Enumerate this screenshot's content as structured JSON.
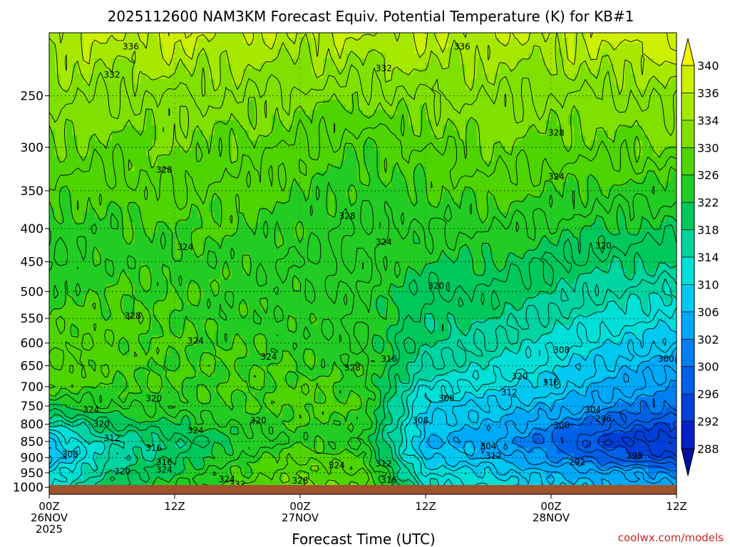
{
  "chart_data": {
    "type": "heatmap",
    "title": "2025112600 NAM3KM Forecast Equiv. Potential Temperature (K) for KB#1",
    "xlabel": "Forecast Time (UTC)",
    "ylabel": "",
    "y_axis": {
      "type": "pressure (log)",
      "range": [
        1025,
        200
      ],
      "ticks": [
        250,
        300,
        350,
        400,
        450,
        500,
        550,
        600,
        650,
        700,
        750,
        800,
        850,
        900,
        950,
        1000
      ]
    },
    "x_axis": {
      "range_hours": [
        0,
        60
      ],
      "ticks": [
        {
          "hour": 0,
          "line1": "00Z",
          "line2": "26NOV",
          "line3": "2025"
        },
        {
          "hour": 12,
          "line1": "12Z",
          "line2": "",
          "line3": ""
        },
        {
          "hour": 24,
          "line1": "00Z",
          "line2": "27NOV",
          "line3": ""
        },
        {
          "hour": 36,
          "line1": "12Z",
          "line2": "",
          "line3": ""
        },
        {
          "hour": 48,
          "line1": "00Z",
          "line2": "28NOV",
          "line3": ""
        },
        {
          "hour": 60,
          "line1": "12Z",
          "line2": "",
          "line3": ""
        }
      ]
    },
    "colorbar": {
      "levels": [
        340,
        336,
        334,
        330,
        326,
        322,
        318,
        314,
        310,
        306,
        302,
        300,
        296,
        292,
        288
      ],
      "colors": [
        "#f5f500",
        "#ccf000",
        "#a6e800",
        "#80e000",
        "#4ed400",
        "#22cc22",
        "#00c85a",
        "#00d4a0",
        "#00e0d8",
        "#00c8f0",
        "#00a8f8",
        "#0080f0",
        "#0060e8",
        "#0040d8",
        "#0020c8",
        "#0010a0"
      ]
    },
    "field": {
      "x_hours": [
        0,
        6,
        12,
        18,
        24,
        30,
        36,
        42,
        48,
        54,
        60
      ],
      "pressure_levels": [
        200,
        250,
        300,
        350,
        400,
        450,
        500,
        550,
        600,
        650,
        700,
        750,
        800,
        850,
        900,
        950,
        1000
      ],
      "theta_e": [
        [
          336,
          336,
          337,
          336,
          336,
          336,
          336,
          336,
          336,
          337,
          338
        ],
        [
          333,
          332,
          332,
          332,
          331,
          331,
          332,
          332,
          332,
          332,
          333
        ],
        [
          330,
          329,
          330,
          329,
          328,
          326,
          328,
          330,
          329,
          329,
          330
        ],
        [
          327,
          327,
          328,
          327,
          326,
          325,
          326,
          327,
          326,
          325,
          325
        ],
        [
          325,
          325,
          326,
          326,
          325,
          324,
          324,
          324,
          323,
          322,
          321
        ],
        [
          324,
          325,
          325,
          325,
          324,
          324,
          322,
          322,
          320,
          319,
          318
        ],
        [
          325,
          326,
          326,
          325,
          325,
          324,
          320,
          320,
          318,
          316,
          314
        ],
        [
          327,
          327,
          326,
          325,
          325,
          324,
          319,
          318,
          315,
          313,
          311
        ],
        [
          328,
          327,
          326,
          326,
          325,
          324,
          318,
          316,
          313,
          310,
          308
        ],
        [
          328,
          327,
          326,
          326,
          326,
          325,
          316,
          314,
          311,
          307,
          304
        ],
        [
          327,
          326,
          326,
          326,
          327,
          325,
          312,
          311,
          309,
          305,
          302
        ],
        [
          322,
          324,
          325,
          326,
          327,
          326,
          309,
          308,
          306,
          302,
          300
        ],
        [
          314,
          320,
          322,
          324,
          326,
          325,
          308,
          306,
          302,
          298,
          296
        ],
        [
          308,
          316,
          318,
          322,
          325,
          324,
          306,
          304,
          299,
          294,
          292
        ],
        [
          306,
          316,
          320,
          324,
          328,
          326,
          308,
          306,
          302,
          298,
          294
        ],
        [
          310,
          318,
          322,
          326,
          330,
          328,
          312,
          310,
          306,
          304,
          302
        ],
        [
          312,
          320,
          324,
          328,
          330,
          330,
          314,
          312,
          308,
          306,
          304
        ]
      ]
    },
    "contour_labels": [
      {
        "value": "336",
        "hour": 7.8,
        "p": 210
      },
      {
        "value": "336",
        "hour": 39.5,
        "p": 210
      },
      {
        "value": "332",
        "hour": 6.0,
        "p": 232
      },
      {
        "value": "332",
        "hour": 32.0,
        "p": 227
      },
      {
        "value": "328",
        "hour": 11.0,
        "p": 325
      },
      {
        "value": "328",
        "hour": 48.5,
        "p": 285
      },
      {
        "value": "328",
        "hour": 28.5,
        "p": 383
      },
      {
        "value": "324",
        "hour": 48.5,
        "p": 333
      },
      {
        "value": "324",
        "hour": 13.0,
        "p": 427
      },
      {
        "value": "324",
        "hour": 32.0,
        "p": 420
      },
      {
        "value": "320",
        "hour": 53.0,
        "p": 425
      },
      {
        "value": "320",
        "hour": 37.0,
        "p": 490
      },
      {
        "value": "328",
        "hour": 8.0,
        "p": 545
      },
      {
        "value": "324",
        "hour": 14.0,
        "p": 595
      },
      {
        "value": "324",
        "hour": 21.0,
        "p": 630
      },
      {
        "value": "328",
        "hour": 29.0,
        "p": 655
      },
      {
        "value": "316",
        "hour": 32.5,
        "p": 635
      },
      {
        "value": "308",
        "hour": 49.0,
        "p": 615
      },
      {
        "value": "300",
        "hour": 59.0,
        "p": 635
      },
      {
        "value": "320",
        "hour": 45.0,
        "p": 675
      },
      {
        "value": "316",
        "hour": 48.0,
        "p": 690
      },
      {
        "value": "312",
        "hour": 44.0,
        "p": 715
      },
      {
        "value": "308",
        "hour": 38.0,
        "p": 730
      },
      {
        "value": "320",
        "hour": 10.0,
        "p": 730
      },
      {
        "value": "324",
        "hour": 4.0,
        "p": 760
      },
      {
        "value": "304",
        "hour": 52.0,
        "p": 760
      },
      {
        "value": "296",
        "hour": 53.0,
        "p": 785
      },
      {
        "value": "320",
        "hour": 20.0,
        "p": 790
      },
      {
        "value": "308",
        "hour": 35.5,
        "p": 790
      },
      {
        "value": "320",
        "hour": 5.0,
        "p": 800
      },
      {
        "value": "300",
        "hour": 49.0,
        "p": 803
      },
      {
        "value": "324",
        "hour": 14.0,
        "p": 818
      },
      {
        "value": "312",
        "hour": 6.0,
        "p": 840
      },
      {
        "value": "304",
        "hour": 42.0,
        "p": 865
      },
      {
        "value": "316",
        "hour": 10.0,
        "p": 870
      },
      {
        "value": "312",
        "hour": 42.5,
        "p": 895
      },
      {
        "value": "298",
        "hour": 56.0,
        "p": 895
      },
      {
        "value": "308",
        "hour": 2.0,
        "p": 890
      },
      {
        "value": "316",
        "hour": 11.0,
        "p": 915
      },
      {
        "value": "292",
        "hour": 50.5,
        "p": 915
      },
      {
        "value": "312",
        "hour": 32.0,
        "p": 920
      },
      {
        "value": "324",
        "hour": 27.5,
        "p": 925
      },
      {
        "value": "320",
        "hour": 7.0,
        "p": 945
      },
      {
        "value": "324",
        "hour": 11.0,
        "p": 940
      },
      {
        "value": "324",
        "hour": 17.0,
        "p": 972
      },
      {
        "value": "328",
        "hour": 24.0,
        "p": 977
      },
      {
        "value": "332",
        "hour": 18.0,
        "p": 990
      },
      {
        "value": "316",
        "hour": 32.5,
        "p": 975
      }
    ],
    "ground_color": "#a0522d"
  },
  "watermark": "coolwx.com/models"
}
